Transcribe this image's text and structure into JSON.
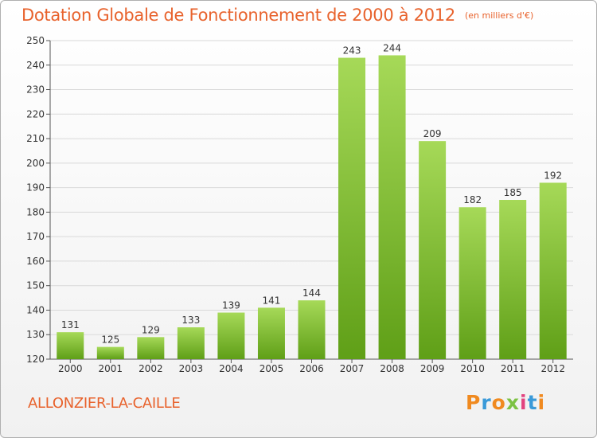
{
  "title": "Dotation Globale de Fonctionnement de 2000 à 2012",
  "unit_note": "(en milliers d'€)",
  "commune": "ALLONZIER-LA-CAILLE",
  "brand": {
    "letters": [
      "P",
      "r",
      "o",
      "x",
      "i",
      "t",
      "i"
    ],
    "colors": [
      "#f08a20",
      "#3a9ad9",
      "#f08a20",
      "#7cc242",
      "#e2437f",
      "#3a9ad9",
      "#f08a20"
    ]
  },
  "colors": {
    "accent": "#e8622c",
    "bar_top": "#a6d958",
    "bar_bottom": "#5f9f17",
    "grid": "#d9d9d9"
  },
  "chart_data": {
    "type": "bar",
    "categories": [
      "2000",
      "2001",
      "2002",
      "2003",
      "2004",
      "2005",
      "2006",
      "2007",
      "2008",
      "2009",
      "2010",
      "2011",
      "2012"
    ],
    "values": [
      131,
      125,
      129,
      133,
      139,
      141,
      144,
      243,
      244,
      209,
      182,
      185,
      192
    ],
    "ylim": [
      120,
      250
    ],
    "yticks": [
      120,
      130,
      140,
      150,
      160,
      170,
      180,
      190,
      200,
      210,
      220,
      230,
      240,
      250
    ],
    "grid": true,
    "data_labels": true
  }
}
